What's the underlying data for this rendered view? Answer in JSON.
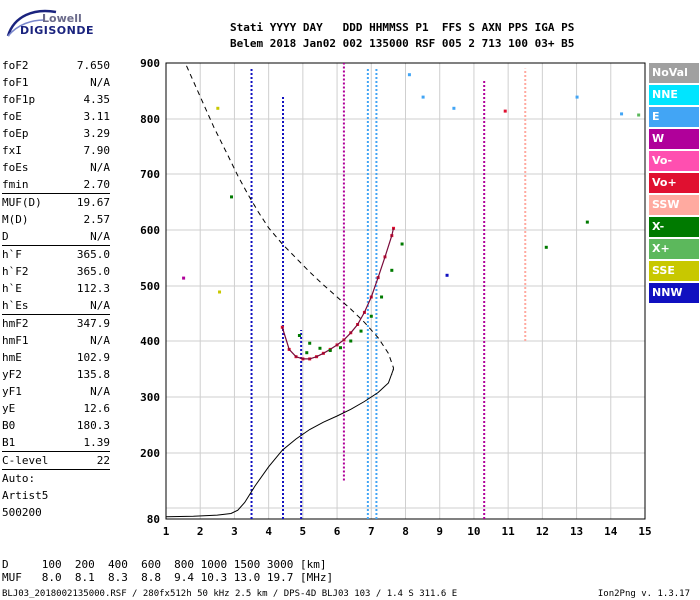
{
  "logo": {
    "line1": "Lowell",
    "line2": "DIGISONDE"
  },
  "header": {
    "line1": "Stati YYYY DAY   DDD HHMMSS P1  FFS S AXN PPS IGA PS",
    "line2": "Belem 2018 Jan02 002 135000 RSF 005 2 713 100 03+ B5"
  },
  "params": [
    {
      "name": "foF2",
      "value": "7.650"
    },
    {
      "name": "foF1",
      "value": "N/A"
    },
    {
      "name": "foF1p",
      "value": "4.35"
    },
    {
      "name": "foE",
      "value": "3.11"
    },
    {
      "name": "foEp",
      "value": "3.29"
    },
    {
      "name": "fxI",
      "value": "7.90"
    },
    {
      "name": "foEs",
      "value": "N/A"
    },
    {
      "name": "fmin",
      "value": "2.70",
      "sep": true
    },
    {
      "name": "MUF(D)",
      "value": "19.67"
    },
    {
      "name": "M(D)",
      "value": "2.57"
    },
    {
      "name": "D",
      "value": "N/A",
      "sep": true
    },
    {
      "name": "h`F",
      "value": "365.0"
    },
    {
      "name": "h`F2",
      "value": "365.0"
    },
    {
      "name": "h`E",
      "value": "112.3"
    },
    {
      "name": "h`Es",
      "value": "N/A",
      "sep": true
    },
    {
      "name": "hmF2",
      "value": "347.9"
    },
    {
      "name": "hmF1",
      "value": "N/A"
    },
    {
      "name": "hmE",
      "value": "102.9"
    },
    {
      "name": "yF2",
      "value": "135.8"
    },
    {
      "name": "yF1",
      "value": "N/A"
    },
    {
      "name": "yE",
      "value": "12.6"
    },
    {
      "name": "B0",
      "value": "180.3"
    },
    {
      "name": "B1",
      "value": "1.39",
      "sep": true
    },
    {
      "name": "C-level",
      "value": "22",
      "sep": true
    },
    {
      "name": "Auto:",
      "value": ""
    },
    {
      "name": "Artist5",
      "value": ""
    },
    {
      "name": "500200",
      "value": ""
    }
  ],
  "legend": [
    {
      "label": "NoVal",
      "color": "#a0a0a0"
    },
    {
      "label": "NNE",
      "color": "#00e5ff"
    },
    {
      "label": "E",
      "color": "#42a5f5"
    },
    {
      "label": "W",
      "color": "#b0009a"
    },
    {
      "label": "Vo-",
      "color": "#ff4fb0"
    },
    {
      "label": "Vo+",
      "color": "#e01030"
    },
    {
      "label": "SSW",
      "color": "#ffaaa0"
    },
    {
      "label": "X-",
      "color": "#007a00"
    },
    {
      "label": "X+",
      "color": "#5cb85c"
    },
    {
      "label": "SSE",
      "color": "#c8c800"
    },
    {
      "label": "NNW",
      "color": "#1010c0"
    }
  ],
  "footer": {
    "line1": "D     100  200  400  600  800 1000 1500 3000 [km]",
    "line2": "MUF   8.0  8.1  8.3  8.8  9.4 10.3 13.0 19.7 [MHz]",
    "file": "BLJ03_2018002135000.RSF / 280fx512h 50 kHz 2.5 km / DPS-4D BLJ03 103 / 1.4 S 311.6 E",
    "version": "Ion2Png v. 1.3.17"
  },
  "chart_data": {
    "type": "scatter",
    "xlabel": "",
    "ylabel": "",
    "xlim": [
      1,
      15
    ],
    "ylim": [
      80,
      900
    ],
    "xticks": [
      1,
      2,
      3,
      4,
      5,
      6,
      7,
      8,
      9,
      10,
      11,
      12,
      13,
      14,
      15
    ],
    "yticks": [
      80,
      100,
      200,
      300,
      400,
      500,
      600,
      700,
      800,
      900
    ],
    "ytick_labels": [
      "80",
      "",
      "200",
      "300",
      "400",
      "500",
      "600",
      "700",
      "800",
      "900"
    ],
    "grid": true,
    "profile_dashed": {
      "x": [
        1.6,
        2.0,
        2.4,
        2.8,
        3.1,
        3.4,
        3.7,
        4.0,
        4.4,
        4.8,
        5.2,
        5.6,
        6.0,
        6.4,
        6.8,
        7.2,
        7.5,
        7.65,
        7.62
      ],
      "y": [
        895,
        840,
        785,
        735,
        697,
        663,
        632,
        604,
        575,
        550,
        525,
        502,
        480,
        458,
        434,
        406,
        378,
        352,
        340
      ]
    },
    "profile_solid": {
      "x": [
        1.0,
        1.8,
        2.5,
        2.9,
        3.1,
        3.3,
        3.6,
        4.0,
        4.4,
        4.8,
        5.2,
        5.6,
        6.0,
        6.4,
        6.8,
        7.2,
        7.5,
        7.65
      ],
      "y": [
        84,
        85,
        87,
        90,
        96,
        110,
        140,
        175,
        205,
        225,
        242,
        255,
        266,
        278,
        292,
        308,
        325,
        350
      ]
    },
    "f2_trace": {
      "x": [
        4.4,
        4.6,
        4.8,
        5.0,
        5.2,
        5.4,
        5.6,
        5.8,
        6.0,
        6.2,
        6.4,
        6.6,
        6.8,
        7.0,
        7.2,
        7.4,
        7.6,
        7.65
      ],
      "y": [
        425,
        385,
        372,
        368,
        368,
        372,
        378,
        385,
        393,
        402,
        415,
        430,
        452,
        480,
        515,
        552,
        590,
        603
      ]
    },
    "x_trace": {
      "x": [
        4.9,
        5.2,
        5.5,
        5.8,
        6.1,
        6.4,
        6.7,
        7.0,
        7.3,
        7.6,
        7.9
      ],
      "y": [
        410,
        396,
        387,
        383,
        388,
        400,
        418,
        445,
        480,
        528,
        575
      ]
    },
    "vertical_streaks": [
      {
        "x": 3.5,
        "y0": 80,
        "y1": 890,
        "series": "NNW"
      },
      {
        "x": 4.42,
        "y0": 80,
        "y1": 840,
        "series": "NNW"
      },
      {
        "x": 4.95,
        "y0": 80,
        "y1": 420,
        "series": "NNW"
      },
      {
        "x": 6.2,
        "y0": 150,
        "y1": 900,
        "series": "W"
      },
      {
        "x": 6.9,
        "y0": 80,
        "y1": 890,
        "series": "E"
      },
      {
        "x": 7.15,
        "y0": 80,
        "y1": 890,
        "series": "E"
      },
      {
        "x": 10.3,
        "y0": 80,
        "y1": 870,
        "series": "W"
      },
      {
        "x": 11.5,
        "y0": 400,
        "y1": 890,
        "series": "SSW"
      }
    ],
    "extra_points": [
      {
        "x": 1.5,
        "y": 515,
        "series": "W"
      },
      {
        "x": 2.5,
        "y": 820,
        "series": "SSE"
      },
      {
        "x": 2.55,
        "y": 490,
        "series": "SSE"
      },
      {
        "x": 2.9,
        "y": 660,
        "series": "X-"
      },
      {
        "x": 5.1,
        "y": 380,
        "series": "X-"
      },
      {
        "x": 8.1,
        "y": 880,
        "series": "E"
      },
      {
        "x": 8.5,
        "y": 840,
        "series": "E"
      },
      {
        "x": 9.2,
        "y": 520,
        "series": "NNW"
      },
      {
        "x": 9.4,
        "y": 820,
        "series": "E"
      },
      {
        "x": 10.9,
        "y": 815,
        "series": "Vo+"
      },
      {
        "x": 12.1,
        "y": 570,
        "series": "X-"
      },
      {
        "x": 13.0,
        "y": 840,
        "series": "E"
      },
      {
        "x": 13.3,
        "y": 615,
        "series": "X-"
      },
      {
        "x": 14.3,
        "y": 810,
        "series": "E"
      },
      {
        "x": 14.8,
        "y": 808,
        "series": "X+"
      }
    ]
  }
}
